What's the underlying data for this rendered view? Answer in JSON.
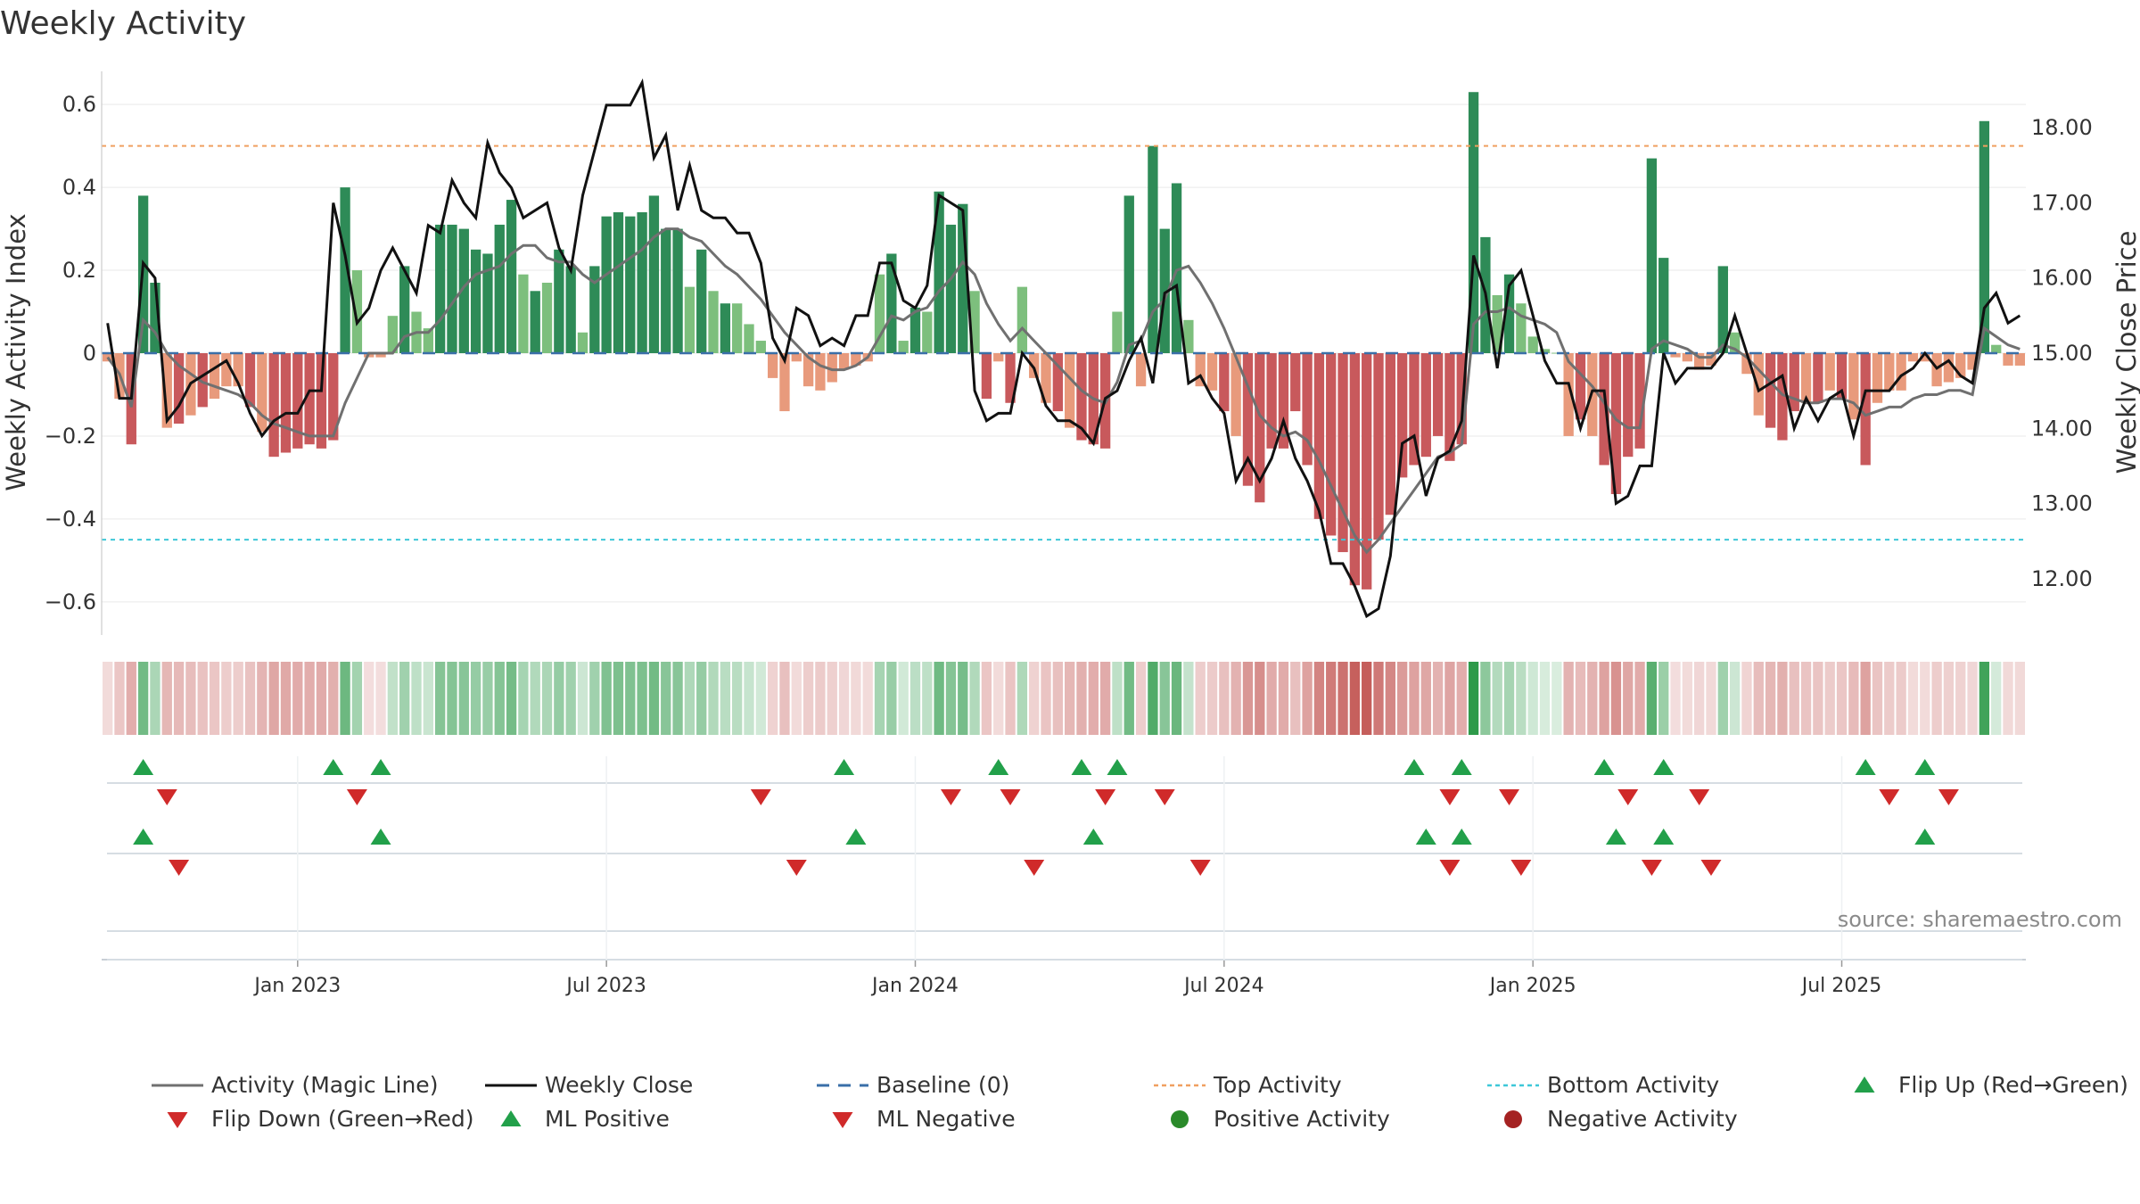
{
  "title": "Weekly Activity",
  "source": "source: sharemaestro.com",
  "chart_data": {
    "type": "bar",
    "title": "Weekly Activity",
    "ylabel_left": "Weekly Activity Index",
    "ylabel_right": "Weekly Close Price",
    "ylim_left": [
      -0.68,
      0.68
    ],
    "ylim_right": [
      11.25,
      18.75
    ],
    "yticks_left": [
      0.6,
      0.4,
      0.2,
      0,
      -0.2,
      -0.4,
      -0.6
    ],
    "yticks_left_labels": [
      "0.6",
      "0.4",
      "0.2",
      "0",
      "−0.2",
      "−0.4",
      "−0.6"
    ],
    "yticks_right": [
      18,
      17,
      16,
      15,
      14,
      13,
      12
    ],
    "yticks_right_labels": [
      "18.00",
      "17.00",
      "16.00",
      "15.00",
      "14.00",
      "13.00",
      "12.00"
    ],
    "x_start": "2022-09-12",
    "x_end": "2025-09-22",
    "x_ticks": [
      "Jan 2023",
      "Jul 2023",
      "Jan 2024",
      "Jul 2024",
      "Jan 2025",
      "Jul 2025"
    ],
    "x_tick_week_index": [
      16,
      42,
      68,
      94,
      120,
      146
    ],
    "top_activity": 0.5,
    "bottom_activity": -0.45,
    "baseline": 0,
    "activity": [
      -0.02,
      -0.11,
      -0.22,
      0.38,
      0.17,
      -0.18,
      -0.17,
      -0.15,
      -0.13,
      -0.11,
      -0.08,
      -0.08,
      -0.13,
      -0.19,
      -0.25,
      -0.24,
      -0.23,
      -0.22,
      -0.23,
      -0.21,
      0.4,
      0.2,
      -0.01,
      -0.01,
      0.09,
      0.21,
      0.1,
      0.06,
      0.31,
      0.31,
      0.3,
      0.25,
      0.24,
      0.31,
      0.37,
      0.19,
      0.15,
      0.17,
      0.25,
      0.21,
      0.05,
      0.21,
      0.33,
      0.34,
      0.33,
      0.34,
      0.38,
      0.3,
      0.3,
      0.16,
      0.25,
      0.15,
      0.12,
      0.12,
      0.07,
      0.03,
      -0.06,
      -0.14,
      -0.02,
      -0.08,
      -0.09,
      -0.07,
      -0.04,
      -0.03,
      -0.02,
      0.19,
      0.24,
      0.03,
      0.11,
      0.1,
      0.39,
      0.31,
      0.36,
      0.15,
      -0.11,
      -0.02,
      -0.12,
      0.16,
      -0.06,
      -0.12,
      -0.14,
      -0.18,
      -0.21,
      -0.22,
      -0.23,
      0.1,
      0.38,
      -0.08,
      0.5,
      0.3,
      0.41,
      0.08,
      -0.08,
      -0.09,
      -0.14,
      -0.2,
      -0.32,
      -0.36,
      -0.23,
      -0.23,
      -0.14,
      -0.27,
      -0.4,
      -0.44,
      -0.48,
      -0.56,
      -0.57,
      -0.45,
      -0.39,
      -0.3,
      -0.27,
      -0.25,
      -0.2,
      -0.26,
      -0.22,
      0.63,
      0.28,
      0.14,
      0.19,
      0.12,
      0.04,
      0.01,
      0.001,
      -0.2,
      -0.16,
      -0.2,
      -0.27,
      -0.34,
      -0.25,
      -0.23,
      0.47,
      0.23,
      -0.01,
      -0.02,
      -0.04,
      -0.03,
      0.21,
      0.05,
      -0.05,
      -0.15,
      -0.18,
      -0.21,
      -0.14,
      -0.12,
      -0.12,
      -0.09,
      -0.11,
      -0.16,
      -0.27,
      -0.12,
      -0.09,
      -0.09,
      -0.02,
      -0.02,
      -0.08,
      -0.07,
      -0.06,
      -0.04,
      0.56,
      0.02,
      -0.03,
      -0.03
    ],
    "magic_line": [
      -0.01,
      -0.05,
      -0.13,
      0.08,
      0.05,
      0.0,
      -0.03,
      -0.05,
      -0.07,
      -0.08,
      -0.09,
      -0.1,
      -0.12,
      -0.15,
      -0.17,
      -0.18,
      -0.19,
      -0.2,
      -0.2,
      -0.2,
      -0.12,
      -0.06,
      0.0,
      0.0,
      0.0,
      0.04,
      0.05,
      0.05,
      0.08,
      0.12,
      0.16,
      0.19,
      0.2,
      0.21,
      0.24,
      0.26,
      0.26,
      0.23,
      0.22,
      0.22,
      0.19,
      0.17,
      0.19,
      0.21,
      0.23,
      0.25,
      0.28,
      0.3,
      0.3,
      0.28,
      0.27,
      0.24,
      0.21,
      0.19,
      0.16,
      0.13,
      0.09,
      0.05,
      0.02,
      -0.01,
      -0.03,
      -0.04,
      -0.04,
      -0.03,
      -0.01,
      0.04,
      0.09,
      0.08,
      0.1,
      0.11,
      0.15,
      0.18,
      0.22,
      0.19,
      0.12,
      0.07,
      0.03,
      0.06,
      0.03,
      0.0,
      -0.03,
      -0.06,
      -0.09,
      -0.11,
      -0.12,
      -0.07,
      0.02,
      0.03,
      0.1,
      0.13,
      0.2,
      0.21,
      0.17,
      0.12,
      0.06,
      -0.01,
      -0.08,
      -0.15,
      -0.18,
      -0.2,
      -0.19,
      -0.21,
      -0.26,
      -0.32,
      -0.38,
      -0.44,
      -0.48,
      -0.45,
      -0.41,
      -0.37,
      -0.33,
      -0.29,
      -0.25,
      -0.24,
      -0.22,
      0.07,
      0.1,
      0.1,
      0.11,
      0.09,
      0.08,
      0.07,
      0.05,
      -0.02,
      -0.05,
      -0.08,
      -0.12,
      -0.16,
      -0.18,
      -0.18,
      0.01,
      0.03,
      0.02,
      0.01,
      -0.01,
      -0.01,
      0.02,
      0.01,
      -0.01,
      -0.04,
      -0.07,
      -0.1,
      -0.11,
      -0.12,
      -0.12,
      -0.11,
      -0.11,
      -0.12,
      -0.15,
      -0.14,
      -0.13,
      -0.13,
      -0.11,
      -0.1,
      -0.1,
      -0.09,
      -0.09,
      -0.1,
      0.06,
      0.04,
      0.02,
      0.01
    ],
    "weekly_close": [
      15.4,
      14.4,
      14.4,
      16.2,
      16.0,
      14.1,
      14.3,
      14.6,
      14.7,
      14.8,
      14.9,
      14.6,
      14.2,
      13.9,
      14.1,
      14.2,
      14.2,
      14.5,
      14.5,
      17.0,
      16.3,
      15.4,
      15.6,
      16.1,
      16.4,
      16.1,
      15.8,
      16.7,
      16.6,
      17.3,
      17.0,
      16.8,
      17.8,
      17.4,
      17.2,
      16.8,
      16.9,
      17.0,
      16.4,
      16.1,
      17.1,
      17.7,
      18.3,
      18.3,
      18.3,
      18.6,
      17.6,
      17.9,
      16.9,
      17.5,
      16.9,
      16.8,
      16.8,
      16.6,
      16.6,
      16.2,
      15.2,
      14.9,
      15.6,
      15.5,
      15.1,
      15.2,
      15.1,
      15.5,
      15.5,
      16.2,
      16.2,
      15.7,
      15.6,
      15.9,
      17.1,
      17.0,
      16.9,
      14.5,
      14.1,
      14.2,
      14.2,
      15.0,
      14.8,
      14.3,
      14.1,
      14.1,
      14.0,
      13.8,
      14.4,
      14.5,
      14.9,
      15.2,
      14.6,
      15.8,
      15.9,
      14.6,
      14.7,
      14.4,
      14.2,
      13.3,
      13.6,
      13.3,
      13.6,
      14.1,
      13.6,
      13.3,
      12.9,
      12.2,
      12.2,
      11.9,
      11.5,
      11.6,
      12.3,
      13.8,
      13.9,
      13.1,
      13.6,
      13.7,
      14.1,
      16.3,
      15.8,
      14.8,
      15.9,
      16.1,
      15.5,
      14.9,
      14.6,
      14.6,
      14.0,
      14.5,
      14.5,
      13.0,
      13.1,
      13.5,
      13.5,
      15.0,
      14.6,
      14.8,
      14.8,
      14.8,
      15.0,
      15.5,
      15.0,
      14.5,
      14.6,
      14.7,
      14.0,
      14.4,
      14.1,
      14.4,
      14.5,
      13.9,
      14.5,
      14.5,
      14.5,
      14.7,
      14.8,
      15.0,
      14.8,
      14.9,
      14.7,
      14.6,
      15.6,
      15.8,
      15.4,
      15.5
    ],
    "flip_up_weeks": [
      3,
      19,
      23,
      62,
      75,
      82,
      85,
      110,
      114,
      126,
      131,
      148,
      153
    ],
    "flip_down_weeks": [
      5,
      21,
      55,
      71,
      76,
      84,
      89,
      113,
      118,
      128,
      134,
      150,
      155
    ],
    "ml_positive_weeks": [
      3,
      23,
      63,
      83,
      111,
      114,
      127,
      131,
      153
    ],
    "ml_negative_weeks": [
      6,
      58,
      78,
      92,
      113,
      119,
      130,
      135
    ],
    "legend": [
      "Activity (Magic Line)",
      "Weekly Close",
      "Baseline (0)",
      "Top Activity",
      "Bottom Activity",
      "Flip Up (Red→Green)",
      "Flip Down (Green→Red)",
      "ML Positive",
      "ML Negative",
      "Positive Activity",
      "Negative Activity"
    ]
  },
  "colors": {
    "pos_dark": "#2e8b57",
    "pos_light": "#7dbf7d",
    "neg_dark": "#c8595c",
    "neg_light": "#e89a7c",
    "magic_line": "#707070",
    "close_line": "#111111",
    "baseline": "#3a6fa8",
    "top": "#f0a060",
    "bottom": "#3ec8d8",
    "up_marker": "#22a04a",
    "down_marker": "#d02a2a",
    "pos_dot": "#2a8a2a",
    "neg_dot": "#a52222"
  }
}
